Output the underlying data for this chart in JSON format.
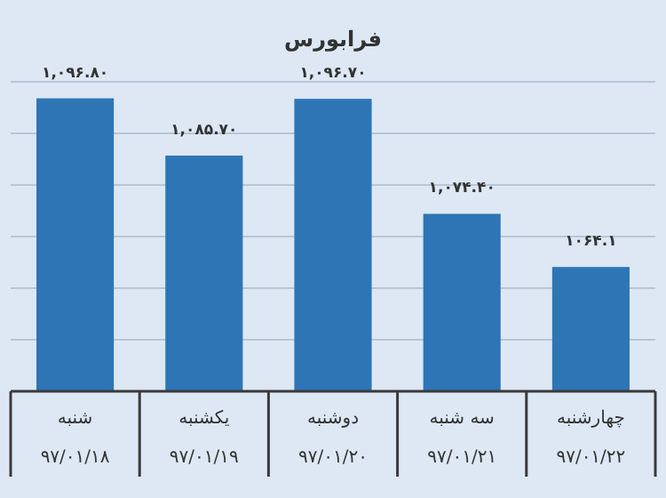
{
  "chart_data": {
    "type": "bar",
    "title": "فرابورس",
    "categories": [
      "شنبه\n۹۷/۰۱/۱۸",
      "یکشنبه\n۹۷/۰۱/۱۹",
      "دوشنبه\n۹۷/۰۱/۲۰",
      "سه شنبه\n۹۷/۰۱/۲۱",
      "چهارشنبه\n۹۷/۰۱/۲۲"
    ],
    "values": [
      1096.8,
      1085.7,
      1096.7,
      1074.4,
      1064.1
    ],
    "value_labels": [
      "۱,۰۹۶.۸۰",
      "۱,۰۸۵.۷۰",
      "۱,۰۹۶.۷۰",
      "۱,۰۷۴.۴۰",
      "۱۰۶۴.۱"
    ],
    "color": "#2e75b6",
    "ylim": [
      1040,
      1100
    ],
    "yticks": [
      {
        "value": 1050,
        "label": null
      },
      {
        "value": 1060,
        "label": null
      },
      {
        "value": 1070,
        "label": null
      },
      {
        "value": 1080,
        "label": null
      },
      {
        "value": 1090,
        "label": null
      },
      {
        "value": 1100,
        "label": null
      }
    ],
    "grid": "y",
    "tick_labels": "x"
  }
}
